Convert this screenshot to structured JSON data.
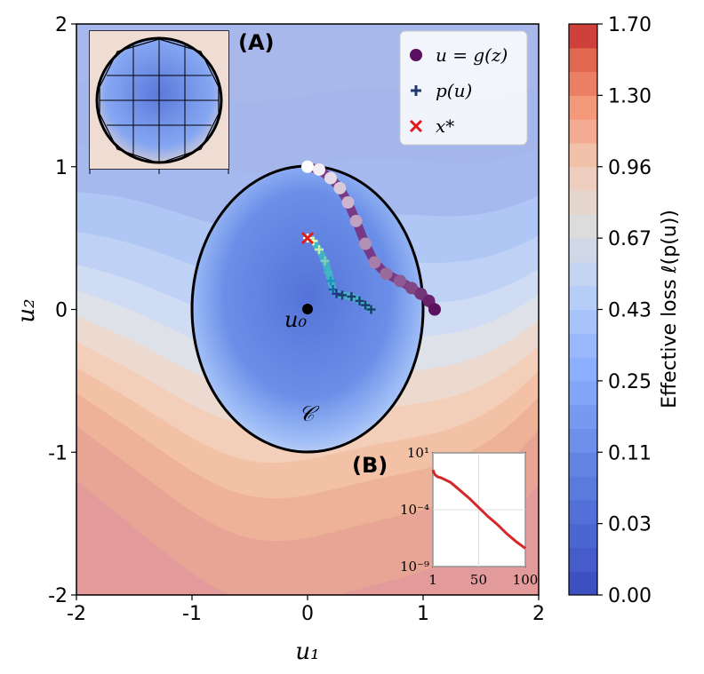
{
  "chart_data": [
    {
      "type": "contour",
      "xlabel": "u₁",
      "ylabel": "u₂",
      "xlim": [
        -2,
        2
      ],
      "ylim": [
        -2,
        2
      ],
      "xticks": [
        "-2",
        "-1",
        "0",
        "1",
        "2"
      ],
      "yticks": [
        "-2",
        "-1",
        "0",
        "1",
        "2"
      ],
      "legend_position": "top-right",
      "series": [
        {
          "name": "u = g(z)",
          "marker": "circle",
          "color": "#5b1060",
          "x": [
            0.0,
            0.1,
            0.2,
            0.28,
            0.35,
            0.42,
            0.5,
            0.58,
            0.68,
            0.8,
            0.9,
            0.98,
            1.05,
            1.1
          ],
          "y": [
            1.0,
            0.98,
            0.92,
            0.85,
            0.75,
            0.62,
            0.46,
            0.33,
            0.25,
            0.2,
            0.15,
            0.11,
            0.06,
            0.0
          ]
        },
        {
          "name": "p(u)",
          "marker": "plus",
          "color": "#1f3a6e",
          "x": [
            0.0,
            0.05,
            0.1,
            0.15,
            0.18,
            0.2,
            0.22,
            0.25,
            0.3,
            0.38,
            0.45,
            0.5,
            0.55
          ],
          "y": [
            0.5,
            0.48,
            0.42,
            0.34,
            0.26,
            0.2,
            0.14,
            0.11,
            0.1,
            0.09,
            0.06,
            0.03,
            0.0
          ]
        },
        {
          "name": "x*",
          "marker": "x",
          "color": "#e31a1c",
          "x": [
            0.0
          ],
          "y": [
            0.5
          ]
        }
      ],
      "annotations": [
        {
          "text": "u₀",
          "x": 0.0,
          "y": 0.0
        },
        {
          "text": "𝒞",
          "x": 0.0,
          "y": -0.9
        }
      ],
      "constraint_ellipse": {
        "cx": 0,
        "cy": 0,
        "rx": 1.0,
        "ry": 1.0
      }
    },
    {
      "type": "colorbar",
      "label": "Effective loss ℓ(p(u))",
      "ticks": [
        "0.00",
        "0.03",
        "0.11",
        "0.25",
        "0.43",
        "0.67",
        "0.96",
        "1.30",
        "1.70"
      ],
      "range": [
        0.0,
        1.7
      ]
    },
    {
      "type": "line",
      "panel": "(B)",
      "x": [
        1,
        3,
        6,
        10,
        20,
        30,
        40,
        50,
        60,
        70,
        80,
        90,
        100
      ],
      "y_log10": [
        -0.5,
        -0.9,
        -1.1,
        -1.2,
        -1.6,
        -2.3,
        -3.0,
        -3.8,
        -4.6,
        -5.3,
        -6.1,
        -6.8,
        -7.4
      ],
      "xticks": [
        "1",
        "50",
        "100"
      ],
      "yticks": [
        "10¹",
        "10⁻⁴",
        "10⁻⁹"
      ],
      "ylim_log10": [
        -9,
        1
      ],
      "color": "#d62728"
    }
  ],
  "labels": {
    "panel_a": "(A)",
    "panel_b": "(B)",
    "legend_g": "u = g(z)",
    "legend_p": "p(u)",
    "legend_x": "x*",
    "u0": "u₀",
    "constraint": "𝒞",
    "xlabel": "u₁",
    "ylabel": "u₂",
    "cbar_label": "Effective loss ℓ(p(u))"
  },
  "colors": {
    "low": "#3b4cc0",
    "mid": "#dddcdc",
    "high": "#b40426"
  }
}
